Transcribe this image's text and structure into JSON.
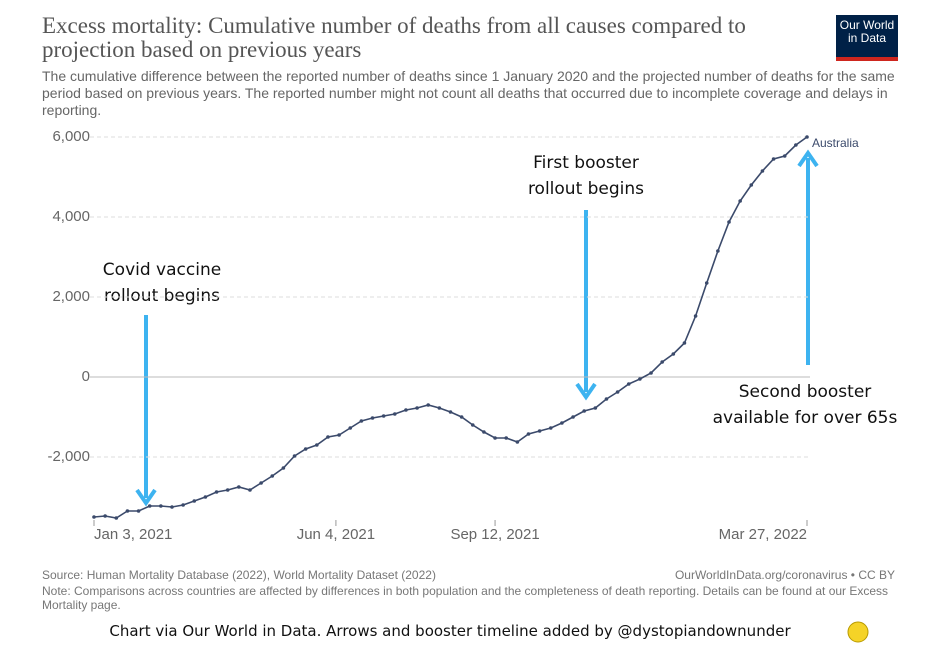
{
  "chart_data": {
    "type": "line",
    "title": "Excess mortality: Cumulative number of deaths from all causes compared to projection based on previous years",
    "subtitle": "The cumulative difference between the reported number of deaths since 1 January 2020 and the projected number of deaths for the same period based on previous years. The reported number might not count all deaths that occurred due to incomplete coverage and delays in reporting.",
    "logo": [
      "Our World",
      "in Data"
    ],
    "x": [
      "2021-01-03",
      "2021-01-10",
      "2021-01-17",
      "2021-01-24",
      "2021-01-31",
      "2021-02-07",
      "2021-02-14",
      "2021-02-21",
      "2021-02-28",
      "2021-03-07",
      "2021-03-14",
      "2021-03-21",
      "2021-03-28",
      "2021-04-04",
      "2021-04-11",
      "2021-04-18",
      "2021-04-25",
      "2021-05-02",
      "2021-05-09",
      "2021-05-16",
      "2021-05-23",
      "2021-05-30",
      "2021-06-06",
      "2021-06-13",
      "2021-06-20",
      "2021-06-27",
      "2021-07-04",
      "2021-07-11",
      "2021-07-18",
      "2021-07-25",
      "2021-08-01",
      "2021-08-08",
      "2021-08-15",
      "2021-08-22",
      "2021-08-29",
      "2021-09-05",
      "2021-09-12",
      "2021-09-19",
      "2021-09-26",
      "2021-10-03",
      "2021-10-10",
      "2021-10-17",
      "2021-10-24",
      "2021-10-31",
      "2021-11-07",
      "2021-11-14",
      "2021-11-21",
      "2021-11-28",
      "2021-12-05",
      "2021-12-12",
      "2021-12-19",
      "2021-12-26",
      "2022-01-02",
      "2022-01-09",
      "2022-01-16",
      "2022-01-23",
      "2022-01-30",
      "2022-02-06",
      "2022-02-13",
      "2022-02-20",
      "2022-02-27",
      "2022-03-06",
      "2022-03-13",
      "2022-03-20",
      "2022-03-27"
    ],
    "series": [
      {
        "name": "Australia",
        "color": "#3b4a6b",
        "values": [
          -3500,
          -3475,
          -3525,
          -3350,
          -3350,
          -3225,
          -3225,
          -3250,
          -3200,
          -3100,
          -3000,
          -2875,
          -2825,
          -2750,
          -2825,
          -2650,
          -2475,
          -2275,
          -1975,
          -1800,
          -1700,
          -1500,
          -1450,
          -1275,
          -1100,
          -1025,
          -975,
          -925,
          -825,
          -775,
          -700,
          -775,
          -875,
          -1000,
          -1200,
          -1375,
          -1525,
          -1525,
          -1625,
          -1425,
          -1350,
          -1275,
          -1150,
          -1000,
          -850,
          -775,
          -550,
          -375,
          -175,
          -50,
          100,
          375,
          575,
          850,
          1525,
          2350,
          3150,
          3875,
          4400,
          4800,
          5150,
          5450,
          5525,
          5800,
          6000
        ]
      }
    ],
    "xlim": [
      "2021-01-03",
      "2022-03-27"
    ],
    "xticks": [
      {
        "value": "2021-01-03",
        "label": "Jan 3, 2021"
      },
      {
        "value": "2021-06-04",
        "label": "Jun 4, 2021"
      },
      {
        "value": "2021-09-12",
        "label": "Sep 12, 2021"
      },
      {
        "value": "2022-03-27",
        "label": "Mar 27, 2022"
      }
    ],
    "ylim": [
      -3550,
      6000
    ],
    "yticks": [
      {
        "value": -2000,
        "label": "-2,000"
      },
      0,
      {
        "value": 2000,
        "label": "2,000"
      },
      {
        "value": 4000,
        "label": "4,000"
      },
      {
        "value": 6000,
        "label": "6,000"
      }
    ],
    "grid": true,
    "annotations": [
      [
        "Covid vaccine",
        "rollout begins"
      ],
      [
        "First booster",
        "rollout begins"
      ],
      [
        "Second booster",
        "available for over 65s"
      ]
    ],
    "source": "Source: Human Mortality Database (2022), World Mortality Dataset (2022)",
    "url": "OurWorldInData.org/coronavirus • CC BY",
    "note": "Note: Comparisons across countries are affected by differences in both population and the completeness of death reporting. Details can be found at our Excess Mortality page.",
    "credit": "Chart via Our World in Data. Arrows and booster timeline added by @dystopiandownunder"
  }
}
